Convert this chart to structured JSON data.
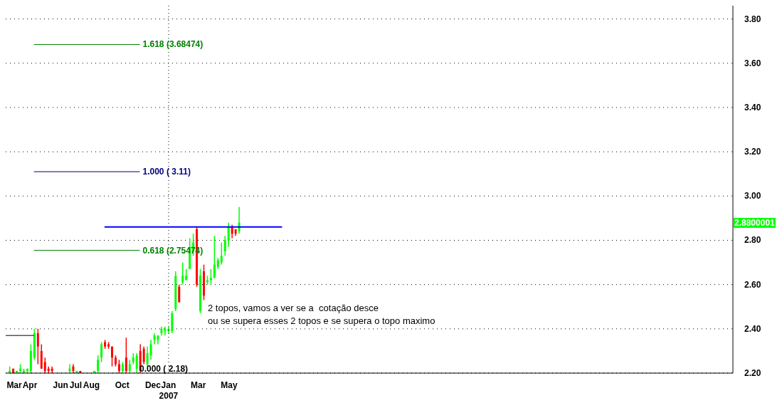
{
  "chart_data": {
    "type": "candlestick",
    "x": [
      "2006-02-20",
      "2006-02-27",
      "2006-03-06",
      "2006-03-13",
      "2006-03-20",
      "2006-03-27",
      "2006-04-03",
      "2006-04-10",
      "2006-04-17",
      "2006-04-24",
      "2006-05-01",
      "2006-05-08",
      "2006-05-15",
      "2006-06-19",
      "2006-06-26",
      "2006-07-03",
      "2006-07-10",
      "2006-08-07",
      "2006-08-14",
      "2006-08-21",
      "2006-08-28",
      "2006-09-04",
      "2006-09-11",
      "2006-09-18",
      "2006-09-25",
      "2006-10-02",
      "2006-10-09",
      "2006-10-16",
      "2006-10-23",
      "2006-10-30",
      "2006-11-06",
      "2006-11-13",
      "2006-11-20",
      "2006-11-27",
      "2006-12-04",
      "2006-12-11",
      "2006-12-18",
      "2006-12-25",
      "2007-01-01",
      "2007-01-08",
      "2007-01-15",
      "2007-01-22",
      "2007-01-29",
      "2007-02-05",
      "2007-02-12",
      "2007-02-19",
      "2007-02-26",
      "2007-03-05",
      "2007-03-12",
      "2007-03-19",
      "2007-03-26",
      "2007-04-02",
      "2007-04-09",
      "2007-04-16",
      "2007-04-23",
      "2007-04-30",
      "2007-05-07",
      "2007-05-14",
      "2007-05-21"
    ],
    "ohlc": [
      [
        2.2,
        2.23,
        2.2,
        2.21
      ],
      [
        2.22,
        2.22,
        2.2,
        2.2
      ],
      [
        2.2,
        2.21,
        2.2,
        2.21
      ],
      [
        2.21,
        2.24,
        2.2,
        2.22
      ],
      [
        2.2,
        2.22,
        2.2,
        2.21
      ],
      [
        2.21,
        2.22,
        2.2,
        2.22
      ],
      [
        2.21,
        2.33,
        2.2,
        2.3
      ],
      [
        2.27,
        2.4,
        2.26,
        2.38
      ],
      [
        2.38,
        2.4,
        2.24,
        2.32
      ],
      [
        2.3,
        2.33,
        2.22,
        2.22
      ],
      [
        2.25,
        2.27,
        2.2,
        2.21
      ],
      [
        2.22,
        2.23,
        2.2,
        2.21
      ],
      [
        2.22,
        2.23,
        2.2,
        2.21
      ],
      [
        2.21,
        2.24,
        2.2,
        2.22
      ],
      [
        2.23,
        2.24,
        2.2,
        2.21
      ],
      [
        2.2,
        2.21,
        2.2,
        2.21
      ],
      [
        2.21,
        2.21,
        2.2,
        2.2
      ],
      [
        2.2,
        2.21,
        2.2,
        2.21
      ],
      [
        2.21,
        2.28,
        2.2,
        2.26
      ],
      [
        2.27,
        2.34,
        2.25,
        2.33
      ],
      [
        2.34,
        2.35,
        2.31,
        2.32
      ],
      [
        2.33,
        2.34,
        2.31,
        2.32
      ],
      [
        2.32,
        2.32,
        2.23,
        2.27
      ],
      [
        2.27,
        2.28,
        2.23,
        2.24
      ],
      [
        2.24,
        2.26,
        2.2,
        2.21
      ],
      [
        2.21,
        2.25,
        2.2,
        2.24
      ],
      [
        2.27,
        2.36,
        2.2,
        2.21
      ],
      [
        2.21,
        2.26,
        2.2,
        2.24
      ],
      [
        2.25,
        2.29,
        2.24,
        2.27
      ],
      [
        2.22,
        2.29,
        2.2,
        2.28
      ],
      [
        2.3,
        2.33,
        2.2,
        2.21
      ],
      [
        2.31,
        2.32,
        2.24,
        2.25
      ],
      [
        2.24,
        2.32,
        2.23,
        2.29
      ],
      [
        2.28,
        2.35,
        2.26,
        2.33
      ],
      [
        2.35,
        2.38,
        2.33,
        2.37
      ],
      [
        2.35,
        2.37,
        2.33,
        2.37
      ],
      [
        2.38,
        2.41,
        2.37,
        2.4
      ],
      [
        2.39,
        2.41,
        2.37,
        2.4
      ],
      [
        2.39,
        2.41,
        2.38,
        2.4
      ],
      [
        2.39,
        2.48,
        2.38,
        2.47
      ],
      [
        2.49,
        2.66,
        2.48,
        2.64
      ],
      [
        2.59,
        2.6,
        2.52,
        2.52
      ],
      [
        2.61,
        2.7,
        2.6,
        2.64
      ],
      [
        2.62,
        2.67,
        2.62,
        2.64
      ],
      [
        2.67,
        2.81,
        2.67,
        2.77
      ],
      [
        2.75,
        2.83,
        2.73,
        2.79
      ],
      [
        2.85,
        2.86,
        2.59,
        2.6
      ],
      [
        2.48,
        2.67,
        2.47,
        2.64
      ],
      [
        2.66,
        2.69,
        2.53,
        2.55
      ],
      [
        2.61,
        2.64,
        2.6,
        2.62
      ],
      [
        2.62,
        2.67,
        2.6,
        2.63
      ],
      [
        2.63,
        2.82,
        2.63,
        2.69
      ],
      [
        2.68,
        2.72,
        2.67,
        2.71
      ],
      [
        2.7,
        2.79,
        2.69,
        2.73
      ],
      [
        2.75,
        2.82,
        2.73,
        2.8
      ],
      [
        2.8,
        2.88,
        2.77,
        2.86
      ],
      [
        2.86,
        2.87,
        2.81,
        2.83
      ],
      [
        2.85,
        2.85,
        2.82,
        2.83
      ],
      [
        2.84,
        2.95,
        2.83,
        2.88
      ]
    ],
    "colors": [
      "#00ff00",
      "#ff0000",
      "#00ff00",
      "#00ff00",
      "#00ff00",
      "#00ff00",
      "#00ff00",
      "#00ff00",
      "#ff0000",
      "#ff0000",
      "#ff0000",
      "#ff0000",
      "#ff0000",
      "#00ff00",
      "#ff0000",
      "#00ff00",
      "#ff0000",
      "#00ff00",
      "#00ff00",
      "#00ff00",
      "#ff0000",
      "#ff0000",
      "#ff0000",
      "#ff0000",
      "#ff0000",
      "#00ff00",
      "#ff0000",
      "#00ff00",
      "#00ff00",
      "#00ff00",
      "#ff0000",
      "#ff0000",
      "#00ff00",
      "#00ff00",
      "#00ff00",
      "#00ff00",
      "#00ff00",
      "#00ff00",
      "#00ff00",
      "#00ff00",
      "#00ff00",
      "#ff0000",
      "#00ff00",
      "#00ff00",
      "#00ff00",
      "#00ff00",
      "#ff0000",
      "#00ff00",
      "#ff0000",
      "#00ff00",
      "#00ff00",
      "#00ff00",
      "#00ff00",
      "#00ff00",
      "#00ff00",
      "#00ff00",
      "#ff0000",
      "#ff0000",
      "#00ff00"
    ],
    "series": [
      {
        "type": "line",
        "name": "1.618 (3.68474)",
        "color": "#008000",
        "x": [
          "2006-04-09",
          "2006-11-05"
        ],
        "values": [
          3.68474,
          3.68474
        ]
      },
      {
        "type": "line",
        "name": "1.000 ( 3.11)",
        "color": "#000080",
        "x": [
          "2006-04-09",
          "2006-11-05"
        ],
        "values": [
          3.11,
          3.11
        ]
      },
      {
        "type": "line",
        "name": "0.618 (2.75474)",
        "color": "#008000",
        "x": [
          "2006-04-09",
          "2006-11-05"
        ],
        "values": [
          2.75474,
          2.75474
        ]
      },
      {
        "type": "line",
        "color": "#000000",
        "x": [
          "2006-02-12",
          "2006-04-09"
        ],
        "values": [
          2.37,
          2.37
        ]
      },
      {
        "type": "line",
        "color": "#0000ff",
        "x": [
          "2006-08-27",
          "2007-08-14"
        ],
        "values": [
          2.86,
          2.86
        ]
      }
    ],
    "xlim": [
      "2006-02-12",
      "2010-01-24"
    ],
    "xticks": [
      {
        "value": "2006-03-01",
        "label": "Mar"
      },
      {
        "value": "2006-04-01",
        "label": "Apr"
      },
      {
        "value": "2006-06-01",
        "label": "Jun"
      },
      {
        "value": "2006-07-01",
        "label": "Jul"
      },
      {
        "value": "2006-08-01",
        "label": "Aug"
      },
      {
        "value": "2006-10-01",
        "label": "Oct"
      },
      {
        "value": "2006-12-01",
        "label": "Dec"
      },
      {
        "value": "2007-01-01",
        "label": "Jan\n2007"
      },
      {
        "value": "2007-03-01",
        "label": "Mar"
      },
      {
        "value": "2007-05-01",
        "label": "May"
      }
    ],
    "ylim": [
      2.2,
      3.86
    ],
    "yticks": [
      {
        "value": 2.2,
        "label": "2.20"
      },
      {
        "value": 2.4,
        "label": "2.40"
      },
      {
        "value": 2.6,
        "label": "2.60"
      },
      {
        "value": 2.8,
        "label": "2.80"
      },
      {
        "value": 3,
        "label": "3.00"
      },
      {
        "value": 3.2,
        "label": "3.20"
      },
      {
        "value": 3.4,
        "label": "3.40"
      },
      {
        "value": 3.6,
        "label": "3.60"
      },
      {
        "value": 3.8,
        "label": "3.80"
      }
    ],
    "grid": "y",
    "ref_lines": [
      {
        "axis": "x",
        "value": "2007-01-01",
        "color": "#000000",
        "line_style": "dotted"
      }
    ],
    "annotations": [
      "0.000 ( 2.18)",
      "2 topos, vamos a ver se a  cotação desce\nou se supera esses 2 topos e se supera o topo maximo",
      "2.8800001"
    ]
  }
}
